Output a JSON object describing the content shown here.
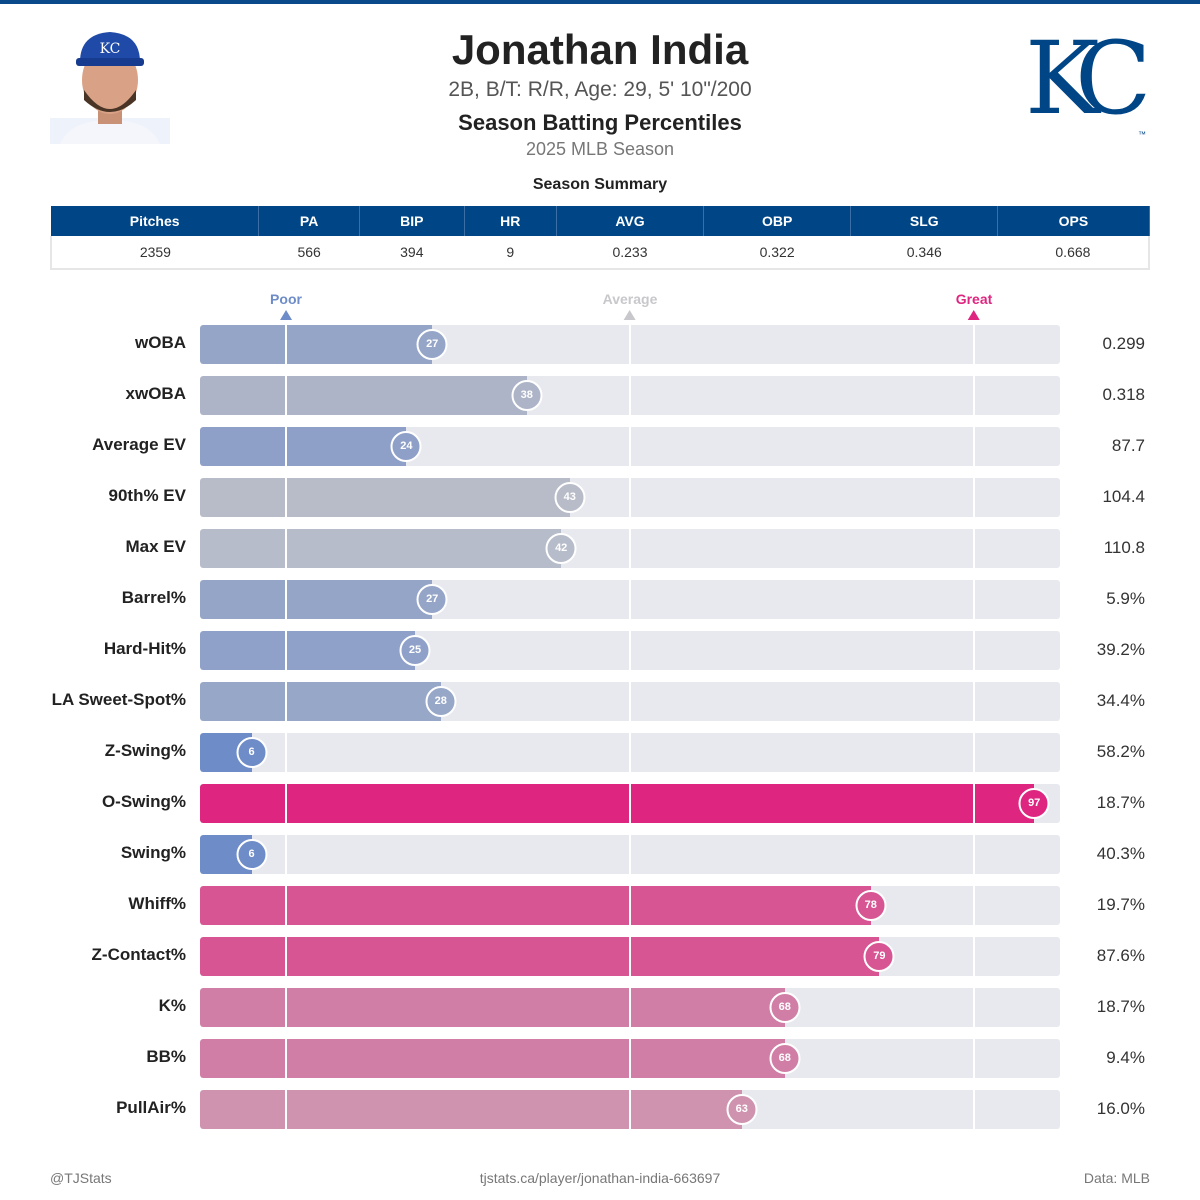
{
  "header": {
    "name": "Jonathan India",
    "bio": "2B, B/T: R/R, Age: 29, 5' 10\"/200",
    "subtitle": "Season Batting Percentiles",
    "season": "2025 MLB Season",
    "logo_text": "KC",
    "logo_tm": "TM"
  },
  "summary": {
    "title": "Season Summary",
    "columns": [
      "Pitches",
      "PA",
      "BIP",
      "HR",
      "AVG",
      "OBP",
      "SLG",
      "OPS"
    ],
    "values": [
      "2359",
      "566",
      "394",
      "9",
      "0.233",
      "0.322",
      "0.346",
      "0.668"
    ]
  },
  "markers": {
    "poor": "Poor",
    "average": "Average",
    "great": "Great",
    "poor_color": "#6e8cc8",
    "average_color": "#c8c8cc",
    "great_color": "#de2680"
  },
  "chart_data": {
    "type": "bar",
    "orientation": "horizontal",
    "xlim": [
      0,
      100
    ],
    "reference_lines": [
      10,
      50,
      90
    ],
    "categories": [
      "wOBA",
      "xwOBA",
      "Average EV",
      "90th% EV",
      "Max EV",
      "Barrel%",
      "Hard-Hit%",
      "LA Sweet-Spot%",
      "Z-Swing%",
      "O-Swing%",
      "Swing%",
      "Whiff%",
      "Z-Contact%",
      "K%",
      "BB%",
      "PullAir%"
    ],
    "percentiles": [
      27,
      38,
      24,
      43,
      42,
      27,
      25,
      28,
      6,
      97,
      6,
      78,
      79,
      68,
      68,
      63
    ],
    "stat_values": [
      "0.299",
      "0.318",
      "87.7",
      "104.4",
      "110.8",
      "5.9%",
      "39.2%",
      "34.4%",
      "58.2%",
      "18.7%",
      "40.3%",
      "19.7%",
      "87.6%",
      "18.7%",
      "9.4%",
      "16.0%"
    ],
    "colors": [
      "#95a5c8",
      "#adb4c8",
      "#8ea0c8",
      "#b8bcc8",
      "#b6bcc9",
      "#95a5c8",
      "#8fa1c9",
      "#97a7c8",
      "#6e8cc8",
      "#de2680",
      "#6e8cc8",
      "#d65592",
      "#d65592",
      "#d07ea6",
      "#d07ea6",
      "#cf93b0"
    ]
  },
  "footer": {
    "left": "@TJStats",
    "center": "tjstats.ca/player/jonathan-india-663697",
    "right": "Data: MLB"
  }
}
